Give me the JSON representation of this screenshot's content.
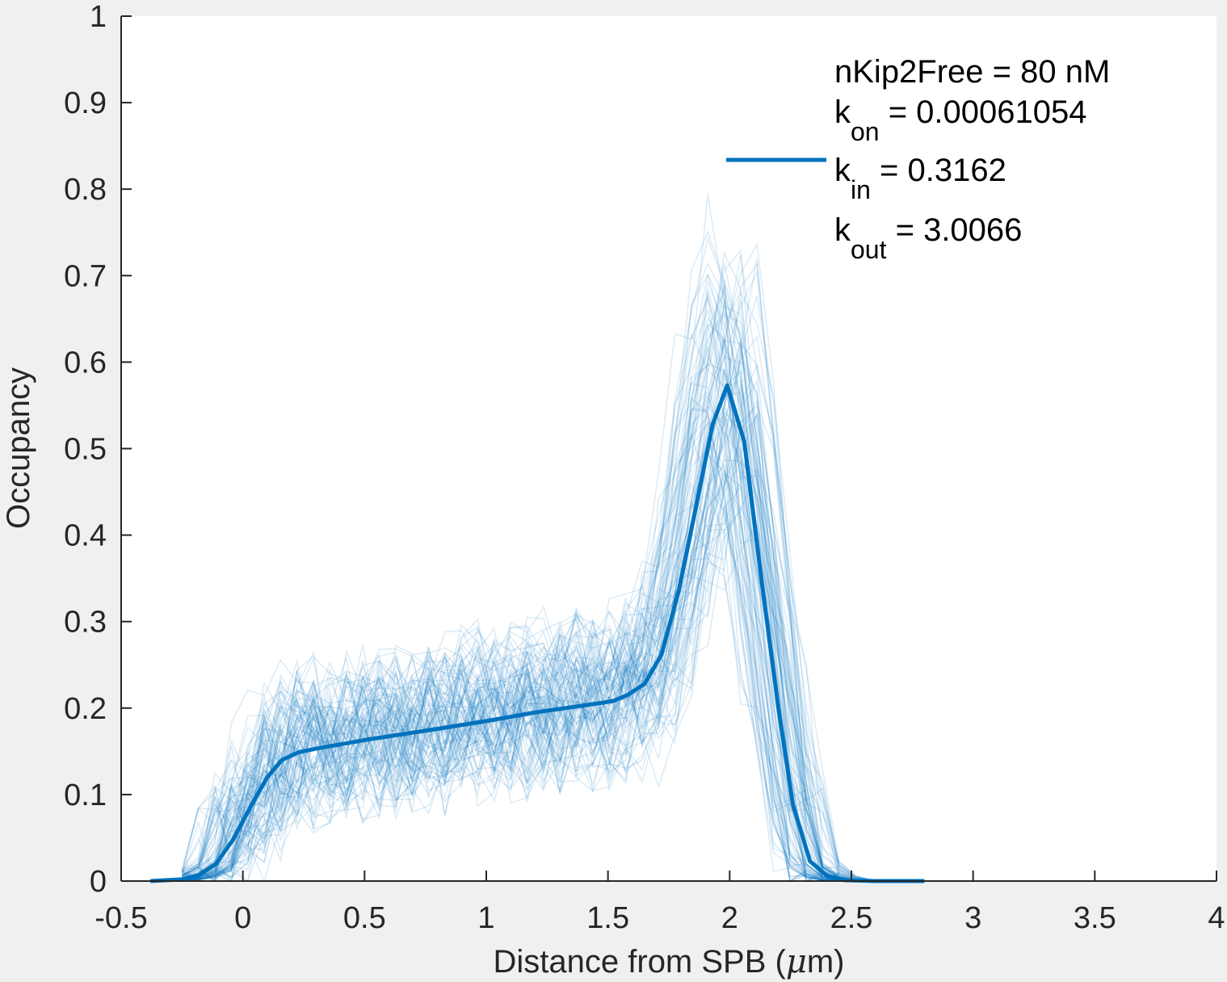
{
  "chart_data": {
    "type": "line",
    "xlabel": "Distance from SPB (μm)",
    "xlabel_parts": {
      "prefix": "Distance from SPB (",
      "mu": "μ",
      "suffix": "m)"
    },
    "ylabel": "Occupancy",
    "xlim": [
      -0.5,
      4
    ],
    "ylim": [
      0,
      1
    ],
    "xticks": [
      -0.5,
      0,
      0.5,
      1,
      1.5,
      2,
      2.5,
      3,
      3.5,
      4
    ],
    "xtick_labels": [
      "-0.5",
      "0",
      "0.5",
      "1",
      "1.5",
      "2",
      "2.5",
      "3",
      "3.5",
      "4"
    ],
    "yticks": [
      0,
      0.1,
      0.2,
      0.3,
      0.4,
      0.5,
      0.6,
      0.7,
      0.8,
      0.9,
      1
    ],
    "ytick_labels": [
      "0",
      "0.1",
      "0.2",
      "0.3",
      "0.4",
      "0.5",
      "0.6",
      "0.7",
      "0.8",
      "0.9",
      "1"
    ],
    "grid": false,
    "legend": {
      "position": "top-right",
      "line1": "nKip2Free = 80 nM",
      "line2_base": "k",
      "line2_sub": "on",
      "line2_rest": " = 0.00061054",
      "line3_base": "k",
      "line3_sub": "in",
      "line3_rest": " = 0.3162",
      "line4_base": "k",
      "line4_sub": "out",
      "line4_rest": " = 3.0066"
    },
    "series": [
      {
        "style": "mean",
        "color": "#0072bd",
        "x": [
          -0.38,
          -0.25,
          -0.18,
          -0.11,
          -0.04,
          0.03,
          0.1,
          0.16,
          0.23,
          0.3,
          0.5,
          0.8,
          1.0,
          1.2,
          1.4,
          1.52,
          1.58,
          1.65,
          1.72,
          1.79,
          1.86,
          1.93,
          1.99,
          2.06,
          2.13,
          2.2,
          2.26,
          2.33,
          2.4,
          2.47,
          2.6,
          2.8
        ],
        "y": [
          0.0,
          0.002,
          0.007,
          0.02,
          0.048,
          0.085,
          0.12,
          0.14,
          0.149,
          0.153,
          0.163,
          0.176,
          0.185,
          0.195,
          0.203,
          0.208,
          0.215,
          0.228,
          0.262,
          0.335,
          0.43,
          0.528,
          0.573,
          0.508,
          0.35,
          0.2,
          0.088,
          0.023,
          0.006,
          0.001,
          0.0,
          0.0
        ]
      }
    ],
    "simulation_traces": {
      "count": 100,
      "color": "#0072bd",
      "opacity": 0.14,
      "note_shape": "noisy individual runs around the mean"
    }
  }
}
